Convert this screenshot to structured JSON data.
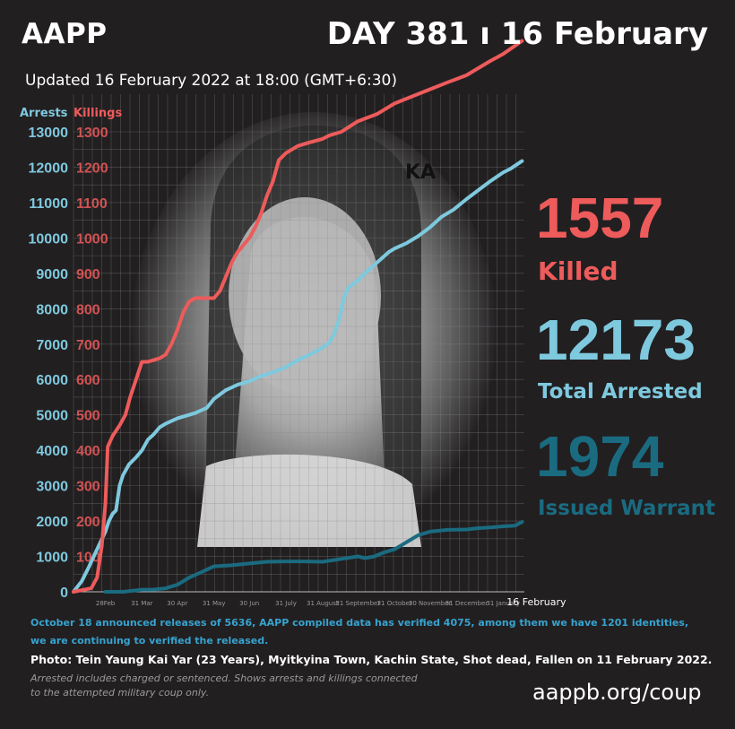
{
  "header": {
    "org": "AAPP",
    "day": "DAY 381 ı 16 February",
    "updated": "Updated  16 February 2022 at 18:00 (GMT+6:30)"
  },
  "photo_watermark": "KA",
  "stats": {
    "killed_value": "1557",
    "killed_label": "Killed",
    "arrested_value": "12173",
    "arrested_label": "Total Arrested",
    "warrant_value": "1974",
    "warrant_label": "Issued Warrant"
  },
  "notes": {
    "line1": "October 18 announced releases of 5636, AAPP compiled data has verified 4075, among them we have 1201 identities,",
    "line2": "we are continuing to verified the released.",
    "photo": "Photo: Tein Yaung Kai Yar (23 Years), Myitkyina Town, Kachin State, Shot dead, Fallen on 11 February 2022.",
    "footnote1": "Arrested includes charged or sentenced. Shows arrests and killings connected",
    "footnote2": "to the attempted military coup only.",
    "url": "aappb.org/coup"
  },
  "colors": {
    "killings": "#ee5b5b",
    "arrests": "#7ec9de",
    "warrants": "#1a6b80",
    "background": "#221f21"
  },
  "chart_data": {
    "type": "line",
    "legend": [
      "Arrests",
      "Killings"
    ],
    "ylabel_left": "Arrests",
    "ylabel_right": "Killings",
    "ylim_arrests": [
      0,
      13000
    ],
    "ylim_killings": [
      0,
      1300
    ],
    "arrest_ticks": [
      "0",
      "1000",
      "2000",
      "3000",
      "4000",
      "5000",
      "6000",
      "7000",
      "8000",
      "9000",
      "10000",
      "11000",
      "12000",
      "13000"
    ],
    "killing_ticks": [
      "0",
      "100",
      "200",
      "300",
      "400",
      "500",
      "600",
      "700",
      "800",
      "900",
      "1000",
      "1100",
      "1200",
      "1300"
    ],
    "x_ticks": [
      {
        "label": "28Feb",
        "x": 0
      },
      {
        "label": "31 Mar",
        "x": 31
      },
      {
        "label": "30 Apr",
        "x": 61
      },
      {
        "label": "31 May",
        "x": 92
      },
      {
        "label": "30 Jun",
        "x": 122
      },
      {
        "label": "31 July",
        "x": 153
      },
      {
        "label": "31 August",
        "x": 184
      },
      {
        "label": "31 September",
        "x": 214
      },
      {
        "label": "31 October",
        "x": 245
      },
      {
        "label": "30 November",
        "x": 275
      },
      {
        "label": "31 December",
        "x": 306
      },
      {
        "label": "31 January",
        "x": 337
      },
      {
        "label": "16 February",
        "x": 353
      }
    ],
    "grid": true,
    "series": [
      {
        "name": "Arrests",
        "axis": "arrests",
        "points": [
          [
            -27,
            0
          ],
          [
            -20,
            300
          ],
          [
            -14,
            700
          ],
          [
            -7,
            1200
          ],
          [
            0,
            1700
          ],
          [
            3,
            2000
          ],
          [
            6,
            2200
          ],
          [
            9,
            2300
          ],
          [
            12,
            3000
          ],
          [
            15,
            3300
          ],
          [
            20,
            3600
          ],
          [
            26,
            3800
          ],
          [
            31,
            4000
          ],
          [
            36,
            4300
          ],
          [
            41,
            4450
          ],
          [
            46,
            4650
          ],
          [
            51,
            4750
          ],
          [
            61,
            4900
          ],
          [
            76,
            5050
          ],
          [
            86,
            5200
          ],
          [
            92,
            5450
          ],
          [
            102,
            5700
          ],
          [
            112,
            5850
          ],
          [
            122,
            5950
          ],
          [
            132,
            6100
          ],
          [
            142,
            6200
          ],
          [
            153,
            6350
          ],
          [
            163,
            6550
          ],
          [
            173,
            6700
          ],
          [
            184,
            6900
          ],
          [
            190,
            7050
          ],
          [
            194,
            7300
          ],
          [
            198,
            7700
          ],
          [
            202,
            8300
          ],
          [
            206,
            8600
          ],
          [
            214,
            8800
          ],
          [
            220,
            9000
          ],
          [
            230,
            9300
          ],
          [
            240,
            9600
          ],
          [
            245,
            9700
          ],
          [
            255,
            9850
          ],
          [
            265,
            10050
          ],
          [
            275,
            10300
          ],
          [
            285,
            10600
          ],
          [
            295,
            10800
          ],
          [
            306,
            11100
          ],
          [
            316,
            11350
          ],
          [
            326,
            11600
          ],
          [
            337,
            11850
          ],
          [
            343,
            11950
          ],
          [
            353,
            12173
          ]
        ]
      },
      {
        "name": "Killings",
        "axis": "killings",
        "points": [
          [
            -27,
            0
          ],
          [
            -12,
            10
          ],
          [
            -7,
            40
          ],
          [
            -3,
            130
          ],
          [
            0,
            250
          ],
          [
            2,
            410
          ],
          [
            6,
            440
          ],
          [
            12,
            470
          ],
          [
            17,
            500
          ],
          [
            21,
            550
          ],
          [
            26,
            600
          ],
          [
            31,
            650
          ],
          [
            36,
            650
          ],
          [
            46,
            660
          ],
          [
            51,
            670
          ],
          [
            56,
            700
          ],
          [
            61,
            740
          ],
          [
            66,
            790
          ],
          [
            71,
            820
          ],
          [
            76,
            830
          ],
          [
            92,
            830
          ],
          [
            97,
            850
          ],
          [
            102,
            890
          ],
          [
            107,
            930
          ],
          [
            112,
            960
          ],
          [
            117,
            980
          ],
          [
            122,
            1000
          ],
          [
            127,
            1030
          ],
          [
            132,
            1070
          ],
          [
            137,
            1120
          ],
          [
            142,
            1160
          ],
          [
            147,
            1220
          ],
          [
            153,
            1240
          ],
          [
            163,
            1260
          ],
          [
            173,
            1270
          ],
          [
            184,
            1280
          ],
          [
            190,
            1290
          ],
          [
            200,
            1300
          ],
          [
            214,
            1330
          ],
          [
            230,
            1350
          ],
          [
            245,
            1380
          ],
          [
            260,
            1400
          ],
          [
            275,
            1420
          ],
          [
            290,
            1440
          ],
          [
            306,
            1460
          ],
          [
            316,
            1480
          ],
          [
            326,
            1500
          ],
          [
            337,
            1520
          ],
          [
            353,
            1557
          ]
        ]
      },
      {
        "name": "Issued Warrant",
        "axis": "arrests",
        "points": [
          [
            0,
            0
          ],
          [
            15,
            0
          ],
          [
            31,
            60
          ],
          [
            40,
            60
          ],
          [
            51,
            100
          ],
          [
            61,
            200
          ],
          [
            71,
            400
          ],
          [
            81,
            550
          ],
          [
            92,
            720
          ],
          [
            107,
            750
          ],
          [
            122,
            800
          ],
          [
            137,
            850
          ],
          [
            153,
            860
          ],
          [
            168,
            860
          ],
          [
            184,
            850
          ],
          [
            194,
            900
          ],
          [
            204,
            950
          ],
          [
            214,
            1000
          ],
          [
            220,
            950
          ],
          [
            228,
            1000
          ],
          [
            235,
            1100
          ],
          [
            245,
            1200
          ],
          [
            255,
            1400
          ],
          [
            265,
            1600
          ],
          [
            275,
            1700
          ],
          [
            290,
            1750
          ],
          [
            306,
            1760
          ],
          [
            316,
            1800
          ],
          [
            326,
            1820
          ],
          [
            337,
            1850
          ],
          [
            347,
            1870
          ],
          [
            353,
            1974
          ]
        ]
      }
    ]
  }
}
